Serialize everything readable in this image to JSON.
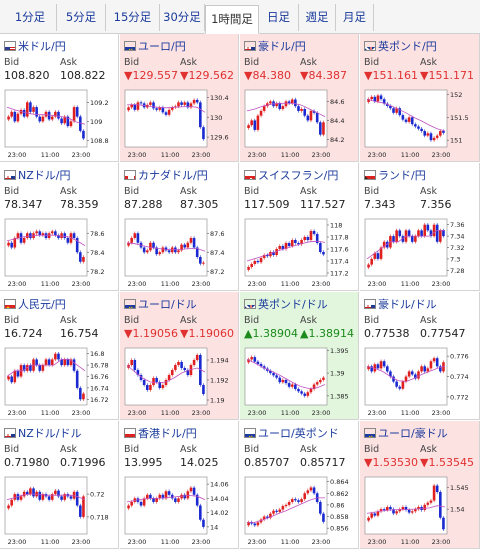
{
  "tabs": [
    {
      "label": "1分足",
      "active": false
    },
    {
      "label": "5分足",
      "active": false
    },
    {
      "label": "15分足",
      "active": false
    },
    {
      "label": "30分足",
      "active": false
    },
    {
      "label": "1時間足",
      "active": true
    },
    {
      "label": "日足",
      "active": false
    },
    {
      "label": "週足",
      "active": false
    },
    {
      "label": "月足",
      "active": false
    }
  ],
  "labels": {
    "bid": "Bid",
    "ask": "Ask"
  },
  "colors": {
    "down_bg": "#fde2e2",
    "up_bg": "#e2f6de",
    "down_text": "#e03030",
    "up_text": "#1c8a1c",
    "link": "#1a3a9c",
    "candle_up": "#e02020",
    "candle_down": "#1a2ad0",
    "ma": "#c050c0"
  },
  "arrows": {
    "down": "▼",
    "up": "▲"
  },
  "pairs": [
    {
      "name": "米ドル/円",
      "bid": "108.820",
      "ask": "108.822",
      "trend": "neutral",
      "flag": "us",
      "chart_data": {
        "type": "candlestick",
        "yticks": [
          "109.2",
          "109",
          "108.8"
        ],
        "xticks": [
          "23:00",
          "11:00",
          "23:00"
        ],
        "ylim": [
          108.73,
          109.33
        ],
        "series": [
          109.05,
          109.1,
          109.0,
          109.08,
          109.12,
          109.05,
          109.2,
          109.1,
          109.15,
          109.05,
          109.0,
          109.05,
          109.1,
          109.02,
          109.05,
          109.1,
          109.03,
          108.98,
          109.05,
          108.95,
          109.0,
          109.15,
          109.05,
          108.9,
          108.82
        ],
        "ma": [
          109.15,
          109.12,
          109.1,
          109.08,
          109.07,
          109.07,
          109.06,
          109.05,
          109.03,
          108.99,
          108.97
        ]
      }
    },
    {
      "name": "ユーロ/円",
      "bid": "129.557",
      "ask": "129.562",
      "trend": "down",
      "flag": "eu",
      "chart_data": {
        "type": "candlestick",
        "yticks": [
          "130.4",
          "130",
          "129.6"
        ],
        "xticks": [
          "23:00",
          "11:00",
          "23:00"
        ],
        "ylim": [
          129.4,
          130.55
        ],
        "series": [
          130.2,
          130.25,
          130.15,
          130.3,
          130.28,
          130.2,
          130.25,
          130.3,
          130.18,
          130.15,
          130.2,
          130.1,
          130.05,
          130.15,
          130.2,
          130.22,
          130.3,
          130.25,
          130.3,
          130.2,
          130.28,
          130.35,
          130.3,
          129.8,
          129.56
        ],
        "ma": [
          130.25,
          130.26,
          130.24,
          130.22,
          130.2,
          130.19,
          130.2,
          130.21,
          130.22,
          130.2,
          130.1
        ]
      }
    },
    {
      "name": "豪ドル/円",
      "bid": "84.380",
      "ask": "84.387",
      "trend": "down",
      "flag": "au",
      "chart_data": {
        "type": "candlestick",
        "yticks": [
          "84.6",
          "84.4",
          "84.2"
        ],
        "xticks": [
          "23:00",
          "11:00",
          "23:00"
        ],
        "ylim": [
          84.12,
          84.72
        ],
        "series": [
          84.35,
          84.4,
          84.3,
          84.45,
          84.5,
          84.55,
          84.58,
          84.6,
          84.55,
          84.58,
          84.52,
          84.55,
          84.6,
          84.58,
          84.62,
          84.55,
          84.5,
          84.52,
          84.45,
          84.4,
          84.5,
          84.48,
          84.38,
          84.25,
          84.38
        ],
        "ma": [
          84.5,
          84.52,
          84.55,
          84.57,
          84.58,
          84.58,
          84.58,
          84.56,
          84.52,
          84.48,
          84.44
        ]
      }
    },
    {
      "name": "英ポンド/円",
      "bid": "151.161",
      "ask": "151.171",
      "trend": "down",
      "flag": "gb",
      "chart_data": {
        "type": "candlestick",
        "yticks": [
          "152",
          "151.5",
          "151"
        ],
        "xticks": [
          "23:00",
          "11:00",
          "23:00"
        ],
        "ylim": [
          150.85,
          152.1
        ],
        "series": [
          151.9,
          151.95,
          151.85,
          151.98,
          151.9,
          151.8,
          151.75,
          151.7,
          151.6,
          151.7,
          151.55,
          151.45,
          151.4,
          151.5,
          151.35,
          151.3,
          151.25,
          151.2,
          151.1,
          151.15,
          151.0,
          151.05,
          151.1,
          151.2,
          151.16
        ],
        "ma": [
          151.9,
          151.85,
          151.82,
          151.76,
          151.68,
          151.6,
          151.5,
          151.42,
          151.33,
          151.25,
          151.2
        ]
      }
    },
    {
      "name": "NZドル/円",
      "bid": "78.347",
      "ask": "78.359",
      "trend": "neutral",
      "flag": "nz",
      "chart_data": {
        "type": "candlestick",
        "yticks": [
          "78.6",
          "78.4",
          "78.2"
        ],
        "xticks": [
          "23:00",
          "11:00",
          "23:00"
        ],
        "ylim": [
          78.15,
          78.75
        ],
        "series": [
          78.5,
          78.45,
          78.55,
          78.6,
          78.5,
          78.55,
          78.6,
          78.55,
          78.6,
          78.62,
          78.58,
          78.6,
          78.55,
          78.6,
          78.62,
          78.58,
          78.55,
          78.6,
          78.55,
          78.5,
          78.6,
          78.55,
          78.4,
          78.3,
          78.35
        ],
        "ma": [
          78.52,
          78.54,
          78.56,
          78.57,
          78.58,
          78.58,
          78.58,
          78.57,
          78.56,
          78.52,
          78.47
        ]
      }
    },
    {
      "name": "カナダドル/円",
      "bid": "87.288",
      "ask": "87.305",
      "trend": "neutral",
      "flag": "ca",
      "chart_data": {
        "type": "candlestick",
        "yticks": [
          "87.6",
          "87.4",
          "87.2"
        ],
        "xticks": [
          "23:00",
          "11:00",
          "23:00"
        ],
        "ylim": [
          87.15,
          87.75
        ],
        "series": [
          87.5,
          87.55,
          87.6,
          87.5,
          87.45,
          87.4,
          87.42,
          87.5,
          87.45,
          87.38,
          87.4,
          87.45,
          87.42,
          87.4,
          87.45,
          87.4,
          87.42,
          87.48,
          87.45,
          87.5,
          87.55,
          87.45,
          87.35,
          87.28,
          87.29
        ],
        "ma": [
          87.5,
          87.49,
          87.47,
          87.45,
          87.44,
          87.43,
          87.43,
          87.43,
          87.44,
          87.44,
          87.41
        ]
      }
    },
    {
      "name": "スイスフラン/円",
      "bid": "117.509",
      "ask": "117.527",
      "trend": "neutral",
      "flag": "ch",
      "chart_data": {
        "type": "candlestick",
        "yticks": [
          "118",
          "117.8",
          "117.6",
          "117.4",
          "117.2"
        ],
        "xticks": [
          "23:00",
          "11:00",
          "23:00"
        ],
        "ylim": [
          117.15,
          118.1
        ],
        "series": [
          117.3,
          117.35,
          117.4,
          117.38,
          117.45,
          117.5,
          117.48,
          117.55,
          117.5,
          117.6,
          117.65,
          117.6,
          117.7,
          117.65,
          117.75,
          117.7,
          117.68,
          117.75,
          117.8,
          117.75,
          117.9,
          117.85,
          117.7,
          117.55,
          117.51
        ],
        "ma": [
          117.4,
          117.44,
          117.48,
          117.52,
          117.57,
          117.61,
          117.65,
          117.69,
          117.72,
          117.73,
          117.71
        ]
      }
    },
    {
      "name": "ランド/円",
      "bid": "7.343",
      "ask": "7.356",
      "trend": "neutral",
      "flag": "za",
      "chart_data": {
        "type": "candlestick",
        "yticks": [
          "7.36",
          "7.34",
          "7.32",
          "7.3",
          "7.28"
        ],
        "xticks": [
          "23:00",
          "11:00",
          "23:00"
        ],
        "ylim": [
          7.27,
          7.37
        ],
        "series": [
          7.29,
          7.3,
          7.31,
          7.3,
          7.32,
          7.33,
          7.32,
          7.34,
          7.33,
          7.35,
          7.34,
          7.33,
          7.35,
          7.34,
          7.33,
          7.34,
          7.35,
          7.34,
          7.36,
          7.35,
          7.34,
          7.36,
          7.33,
          7.35,
          7.34
        ],
        "ma": [
          7.3,
          7.31,
          7.32,
          7.33,
          7.33,
          7.34,
          7.34,
          7.34,
          7.34,
          7.35,
          7.35
        ]
      }
    },
    {
      "name": "人民元/円",
      "bid": "16.724",
      "ask": "16.754",
      "trend": "neutral",
      "flag": "cn",
      "chart_data": {
        "type": "candlestick",
        "yticks": [
          "16.8",
          "16.78",
          "16.76",
          "16.74",
          "16.72"
        ],
        "xticks": [
          "23:00",
          "11:00",
          "23:00"
        ],
        "ylim": [
          16.71,
          16.81
        ],
        "series": [
          16.76,
          16.75,
          16.77,
          16.76,
          16.78,
          16.77,
          16.78,
          16.77,
          16.79,
          16.78,
          16.77,
          16.78,
          16.79,
          16.78,
          16.79,
          16.8,
          16.79,
          16.78,
          16.79,
          16.78,
          16.79,
          16.77,
          16.74,
          16.72,
          16.73
        ],
        "ma": [
          16.76,
          16.77,
          16.77,
          16.78,
          16.78,
          16.78,
          16.78,
          16.79,
          16.79,
          16.78,
          16.77
        ]
      }
    },
    {
      "name": "ユーロ/ドル",
      "bid": "1.19056",
      "ask": "1.19060",
      "trend": "down",
      "flag": "eu",
      "chart_data": {
        "type": "candlestick",
        "yticks": [
          "1.194",
          "1.192",
          "1.19"
        ],
        "xticks": [
          "23:00",
          "11:00",
          "23:00"
        ],
        "ylim": [
          1.1895,
          1.1952
        ],
        "series": [
          1.1935,
          1.194,
          1.193,
          1.1925,
          1.192,
          1.1915,
          1.191,
          1.1915,
          1.1922,
          1.1918,
          1.1912,
          1.1915,
          1.192,
          1.1925,
          1.193,
          1.1935,
          1.1938,
          1.1932,
          1.193,
          1.1925,
          1.1935,
          1.194,
          1.1945,
          1.1915,
          1.1906
        ],
        "ma": [
          1.1935,
          1.1928,
          1.1922,
          1.1918,
          1.1917,
          1.1918,
          1.1922,
          1.1927,
          1.193,
          1.1932,
          1.1928
        ]
      }
    },
    {
      "name": "英ポンド/ドル",
      "bid": "1.38904",
      "ask": "1.38914",
      "trend": "up",
      "flag": "gb",
      "chart_data": {
        "type": "candlestick",
        "yticks": [
          "1.395",
          "1.39",
          "1.385"
        ],
        "xticks": [
          "23:00",
          "11:00",
          "23:00"
        ],
        "ylim": [
          1.383,
          1.3955
        ],
        "series": [
          1.393,
          1.3935,
          1.3925,
          1.392,
          1.3915,
          1.391,
          1.3905,
          1.39,
          1.3895,
          1.389,
          1.388,
          1.3885,
          1.3878,
          1.387,
          1.3875,
          1.3865,
          1.386,
          1.3855,
          1.385,
          1.3858,
          1.3865,
          1.3875,
          1.388,
          1.3885,
          1.389
        ],
        "ma": [
          1.393,
          1.3922,
          1.3913,
          1.3905,
          1.3897,
          1.3888,
          1.3878,
          1.387,
          1.3866,
          1.3868,
          1.3875
        ]
      }
    },
    {
      "name": "豪ドル/ドル",
      "bid": "0.77538",
      "ask": "0.77547",
      "trend": "neutral",
      "flag": "au",
      "chart_data": {
        "type": "candlestick",
        "yticks": [
          "0.776",
          "0.774",
          "0.772"
        ],
        "xticks": [
          "23:00",
          "11:00",
          "23:00"
        ],
        "ylim": [
          0.7712,
          0.7768
        ],
        "series": [
          0.775,
          0.7745,
          0.7752,
          0.7748,
          0.7755,
          0.775,
          0.7745,
          0.774,
          0.7735,
          0.773,
          0.7728,
          0.7735,
          0.774,
          0.7745,
          0.7742,
          0.7738,
          0.7745,
          0.775,
          0.7745,
          0.7748,
          0.7755,
          0.7758,
          0.775,
          0.7745,
          0.7754
        ],
        "ma": [
          0.775,
          0.7748,
          0.7745,
          0.774,
          0.7736,
          0.7735,
          0.7738,
          0.7742,
          0.7745,
          0.7748,
          0.775
        ]
      }
    },
    {
      "name": "NZドル/ドル",
      "bid": "0.71980",
      "ask": "0.71996",
      "trend": "neutral",
      "flag": "nz",
      "chart_data": {
        "type": "candlestick",
        "yticks": [
          "0.72",
          "0.718"
        ],
        "xticks": [
          "23:00",
          "11:00",
          "23:00"
        ],
        "ylim": [
          0.7165,
          0.7215
        ],
        "series": [
          0.719,
          0.7195,
          0.72,
          0.7195,
          0.7198,
          0.7202,
          0.72,
          0.7205,
          0.7198,
          0.7202,
          0.7195,
          0.72,
          0.7198,
          0.7195,
          0.72,
          0.7203,
          0.7198,
          0.7195,
          0.72,
          0.7198,
          0.7196,
          0.7202,
          0.719,
          0.718,
          0.7198
        ],
        "ma": [
          0.7195,
          0.7197,
          0.7199,
          0.72,
          0.72,
          0.7199,
          0.7199,
          0.7199,
          0.7199,
          0.7198,
          0.7195
        ]
      }
    },
    {
      "name": "香港ドル/円",
      "bid": "13.995",
      "ask": "14.025",
      "trend": "neutral",
      "flag": "hk",
      "chart_data": {
        "type": "candlestick",
        "yticks": [
          "14.06",
          "14.04",
          "14.02",
          "14"
        ],
        "xticks": [
          "23:00",
          "11:00",
          "23:00"
        ],
        "ylim": [
          13.99,
          14.07
        ],
        "series": [
          14.03,
          14.035,
          14.04,
          14.035,
          14.03,
          14.04,
          14.045,
          14.04,
          14.035,
          14.04,
          14.045,
          14.04,
          14.05,
          14.045,
          14.04,
          14.035,
          14.04,
          14.045,
          14.04,
          14.05,
          14.055,
          14.045,
          14.03,
          14.01,
          14.0
        ],
        "ma": [
          14.035,
          14.037,
          14.039,
          14.04,
          14.04,
          14.041,
          14.042,
          14.043,
          14.044,
          14.043,
          14.038
        ]
      }
    },
    {
      "name": "ユーロ/英ポンド",
      "bid": "0.85707",
      "ask": "0.85717",
      "trend": "neutral",
      "flag": "eu",
      "chart_data": {
        "type": "candlestick",
        "yticks": [
          "0.864",
          "0.862",
          "0.86",
          "0.858",
          "0.856"
        ],
        "xticks": [
          "23:00",
          "11:00",
          "23:00"
        ],
        "ylim": [
          0.855,
          0.8648
        ],
        "series": [
          0.857,
          0.8568,
          0.8565,
          0.857,
          0.8575,
          0.858,
          0.8578,
          0.8585,
          0.859,
          0.8588,
          0.8592,
          0.8598,
          0.86,
          0.8605,
          0.861,
          0.8608,
          0.8605,
          0.861,
          0.862,
          0.8625,
          0.863,
          0.862,
          0.8605,
          0.8585,
          0.8571
        ],
        "ma": [
          0.857,
          0.857,
          0.8574,
          0.8579,
          0.8585,
          0.859,
          0.8596,
          0.8602,
          0.8608,
          0.8612,
          0.8612
        ]
      }
    },
    {
      "name": "ユーロ/豪ドル",
      "bid": "1.53530",
      "ask": "1.53545",
      "trend": "down",
      "flag": "eu",
      "chart_data": {
        "type": "candlestick",
        "yticks": [
          "1.545",
          "1.54"
        ],
        "xticks": [
          "23:00",
          "11:00",
          "23:00"
        ],
        "ylim": [
          1.5342,
          1.5475
        ],
        "series": [
          1.538,
          1.539,
          1.5385,
          1.5395,
          1.54,
          1.5398,
          1.5405,
          1.54,
          1.539,
          1.5395,
          1.54,
          1.5405,
          1.5398,
          1.5392,
          1.5395,
          1.54,
          1.5405,
          1.5398,
          1.541,
          1.5415,
          1.542,
          1.5455,
          1.544,
          1.538,
          1.5353
        ],
        "ma": [
          1.539,
          1.5393,
          1.5396,
          1.5398,
          1.5399,
          1.5399,
          1.54,
          1.5401,
          1.5403,
          1.5408,
          1.5405
        ]
      }
    }
  ]
}
